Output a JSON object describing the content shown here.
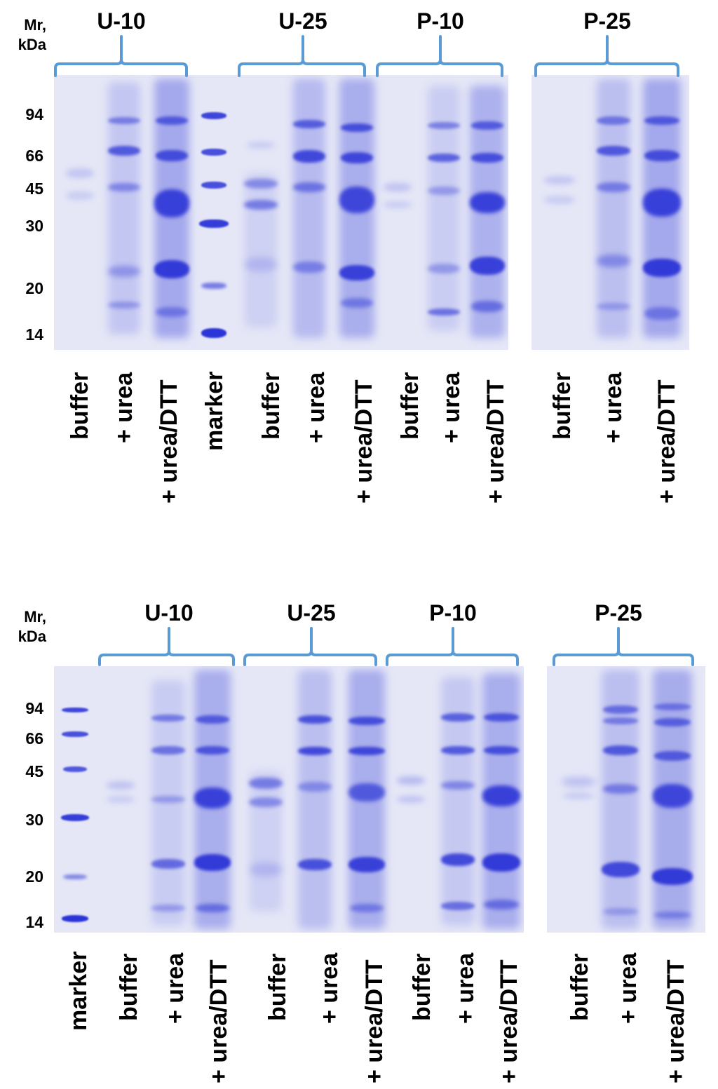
{
  "panels": [
    {
      "id": "top",
      "mr_label": [
        "Mr,",
        "kDa"
      ],
      "ticks": [
        "94",
        "66",
        "45",
        "30",
        "20",
        "14"
      ],
      "groups": [
        "U-10",
        "U-25",
        "P-10",
        "P-25"
      ],
      "lanes": [
        "buffer",
        "+ urea",
        "+ urea/DTT",
        "marker",
        "buffer",
        "+ urea",
        "+ urea/DTT",
        "buffer",
        "+ urea",
        "+ urea/DTT",
        "buffer",
        "+ urea",
        "+ urea/DTT"
      ]
    },
    {
      "id": "bottom",
      "mr_label": [
        "Mr,",
        "kDa"
      ],
      "ticks": [
        "94",
        "66",
        "45",
        "30",
        "20",
        "14"
      ],
      "groups": [
        "U-10",
        "U-25",
        "P-10",
        "P-25"
      ],
      "lanes": [
        "marker",
        "buffer",
        "+ urea",
        "+ urea/DTT",
        "buffer",
        "+ urea",
        "+ urea/DTT",
        "buffer",
        "+ urea",
        "+ urea/DTT",
        "buffer",
        "+ urea",
        "+ urea/DTT"
      ]
    }
  ],
  "colors": {
    "gel_background": "#e5e7f7",
    "band": "#2b34d6",
    "bracket": "#5b9bd5",
    "text": "#000000"
  }
}
